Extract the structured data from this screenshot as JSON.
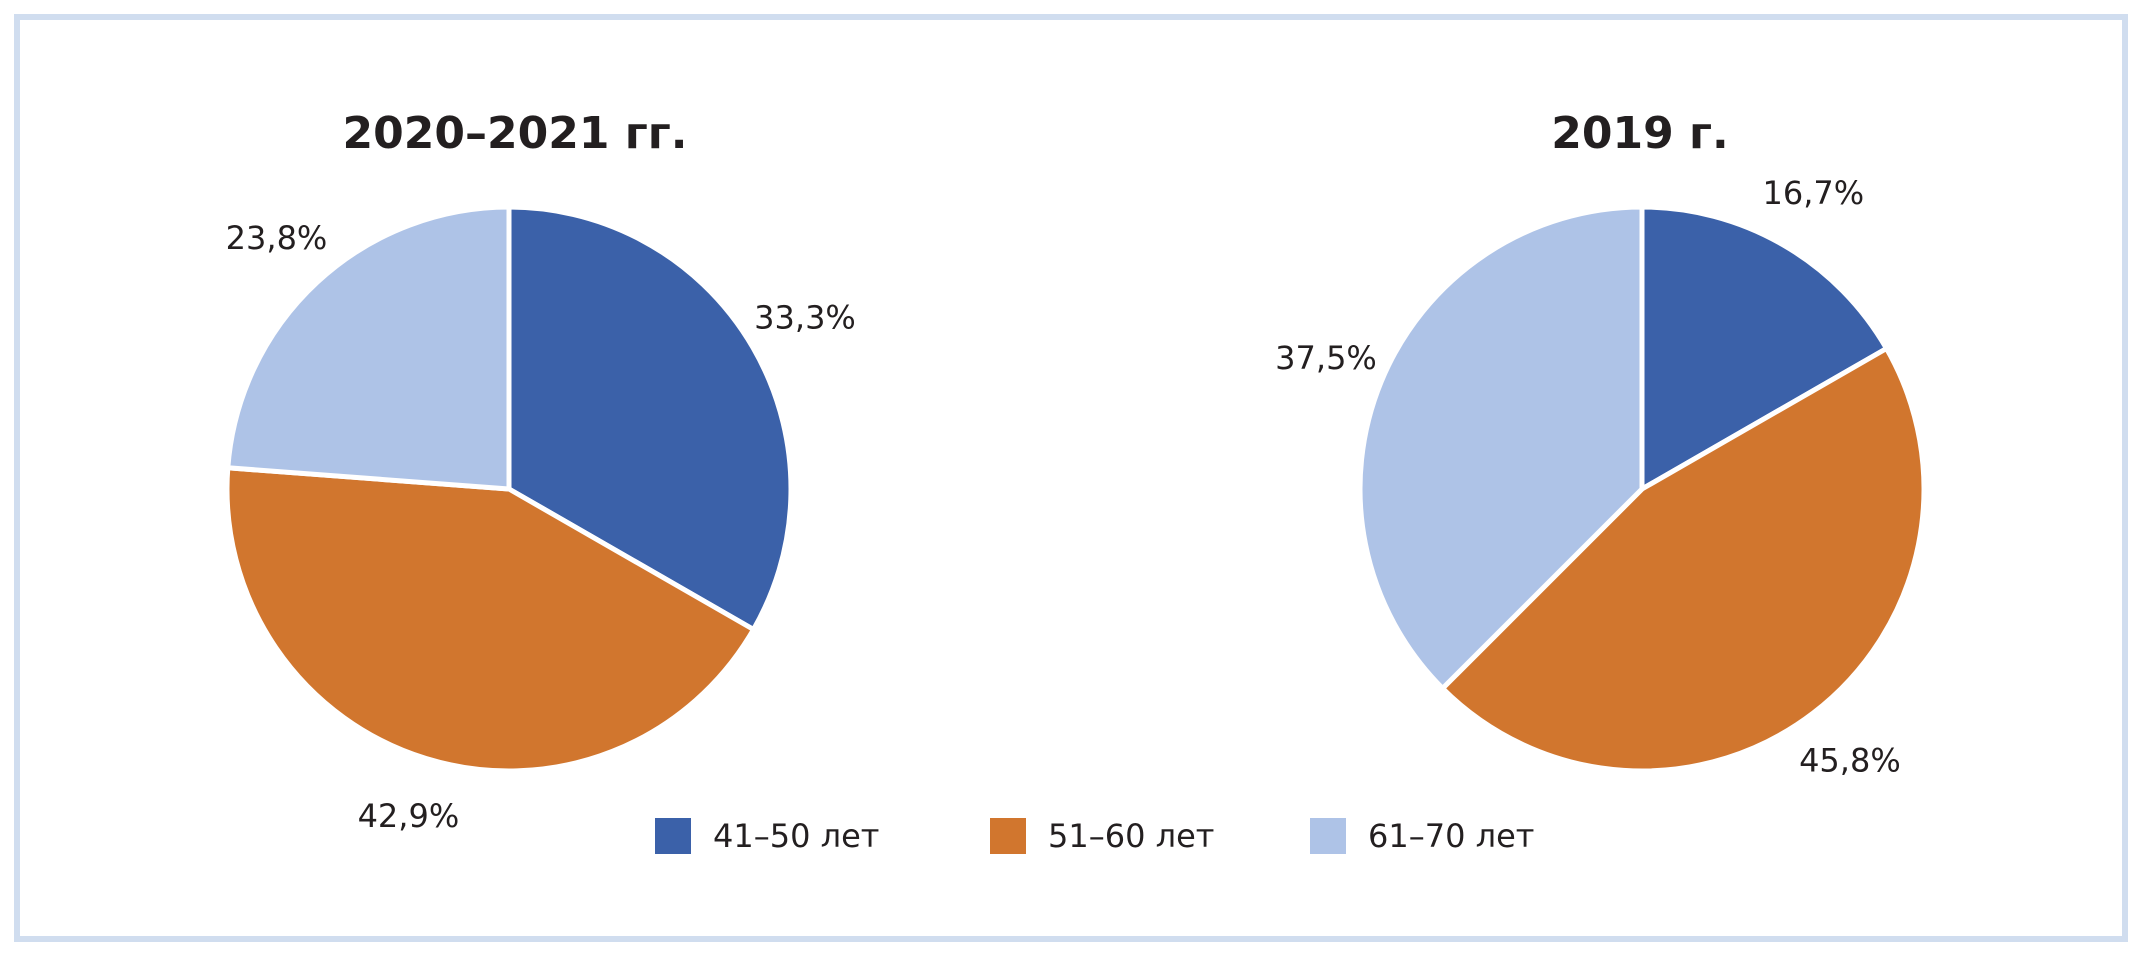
{
  "colors": {
    "frame": "#d0ddef",
    "slice_stroke": "#ffffff",
    "41-50": "#3b61a9",
    "51-60": "#d1762e",
    "61-70": "#aec3e7"
  },
  "legend": [
    {
      "label": "41–50 лет",
      "color": "#3b61a9"
    },
    {
      "label": "51–60 лет",
      "color": "#d1762e"
    },
    {
      "label": "61–70 лет",
      "color": "#aec3e7"
    }
  ],
  "chart_data": [
    {
      "type": "pie",
      "title": "2020–2021 гг.",
      "categories": [
        "41–50 лет",
        "51–60 лет",
        "61–70 лет"
      ],
      "values": [
        33.3,
        42.9,
        23.8
      ],
      "labels": [
        "33,3%",
        "42,9%",
        "23,8%"
      ],
      "start": "12 o'clock",
      "direction": "clockwise"
    },
    {
      "type": "pie",
      "title": "2019 г.",
      "categories": [
        "41–50 лет",
        "51–60 лет",
        "61–70 лет"
      ],
      "values": [
        16.7,
        45.8,
        37.5
      ],
      "labels": [
        "16,7%",
        "45,8%",
        "37,5%"
      ],
      "start": "12 o'clock",
      "direction": "clockwise"
    }
  ]
}
